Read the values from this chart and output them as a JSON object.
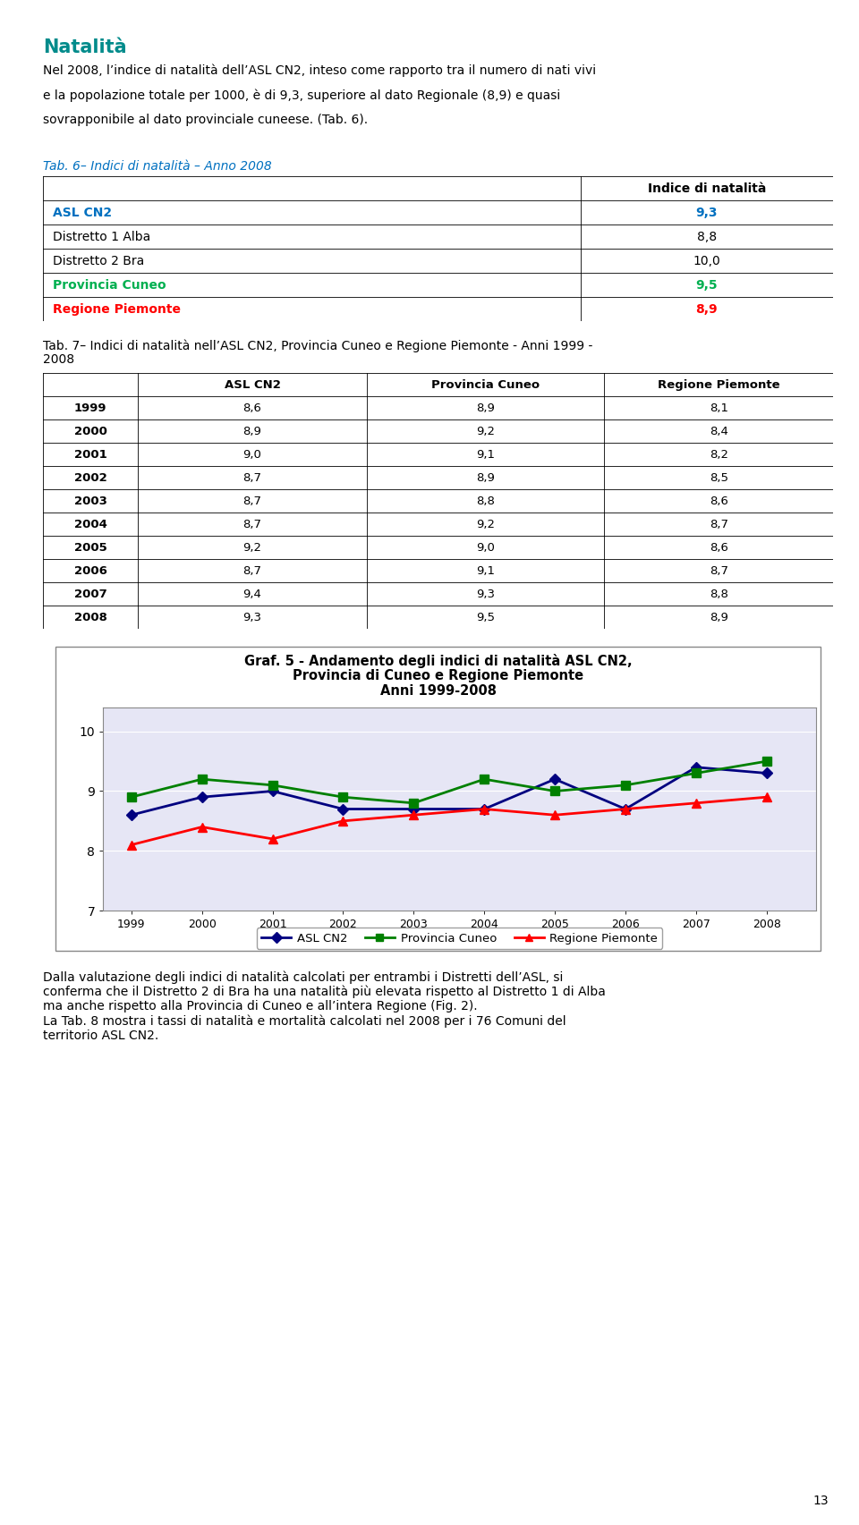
{
  "page_title": "Natalità",
  "intro_text": "Nel 2008, l’indice di natalità dell’ASL CN2, inteso come rapporto tra il numero di nati vivi\ne la popolazione totale per 1000, è di 9,3, superiore al dato Regionale (8,9) e quasi\nsovrapponibile al dato provinciale cuneese. (Tab. 6).",
  "tab6_title": "Tab. 6– Indici di natalità – Anno 2008",
  "tab6_header": "Indice di natalità",
  "tab6_rows": [
    {
      "label": "ASL CN2",
      "value": "9,3",
      "bold": true,
      "color": "#0070C0"
    },
    {
      "label": "Distretto 1 Alba",
      "value": "8,8",
      "bold": false,
      "color": "#000000"
    },
    {
      "label": "Distretto 2 Bra",
      "value": "10,0",
      "bold": false,
      "color": "#000000"
    },
    {
      "label": "Provincia Cuneo",
      "value": "9,5",
      "bold": true,
      "color": "#00B050"
    },
    {
      "label": "Regione Piemonte",
      "value": "8,9",
      "bold": true,
      "color": "#FF0000"
    }
  ],
  "tab7_title_line1": "Tab. 7– Indici di natalità nell’ASL CN2, Provincia Cuneo e Regione Piemonte - Anni 1999 -",
  "tab7_title_line2": "2008",
  "tab7_headers": [
    "",
    "ASL CN2",
    "Provincia Cuneo",
    "Regione Piemonte"
  ],
  "tab7_data": [
    [
      "1999",
      "8,6",
      "8,9",
      "8,1"
    ],
    [
      "2000",
      "8,9",
      "9,2",
      "8,4"
    ],
    [
      "2001",
      "9,0",
      "9,1",
      "8,2"
    ],
    [
      "2002",
      "8,7",
      "8,9",
      "8,5"
    ],
    [
      "2003",
      "8,7",
      "8,8",
      "8,6"
    ],
    [
      "2004",
      "8,7",
      "9,2",
      "8,7"
    ],
    [
      "2005",
      "9,2",
      "9,0",
      "8,6"
    ],
    [
      "2006",
      "8,7",
      "9,1",
      "8,7"
    ],
    [
      "2007",
      "9,4",
      "9,3",
      "8,8"
    ],
    [
      "2008",
      "9,3",
      "9,5",
      "8,9"
    ]
  ],
  "chart_title_line1": "Graf. 5 - Andamento degli indici di natalità ASL CN2,",
  "chart_title_line2": "Provincia di Cuneo e Regione Piemonte",
  "chart_title_line3": "Anni 1999-2008",
  "years": [
    1999,
    2000,
    2001,
    2002,
    2003,
    2004,
    2005,
    2006,
    2007,
    2008
  ],
  "asl_cn2": [
    8.6,
    8.9,
    9.0,
    8.7,
    8.7,
    8.7,
    9.2,
    8.7,
    9.4,
    9.3
  ],
  "provincia_cuneo": [
    8.9,
    9.2,
    9.1,
    8.9,
    8.8,
    9.2,
    9.0,
    9.1,
    9.3,
    9.5
  ],
  "regione_piemonte": [
    8.1,
    8.4,
    8.2,
    8.5,
    8.6,
    8.7,
    8.6,
    8.7,
    8.8,
    8.9
  ],
  "asl_color": "#000080",
  "provincia_color": "#008000",
  "regione_color": "#FF0000",
  "chart_bg": "#E6E6F5",
  "outro_text_line1": "Dalla valutazione degli indici di natalità calcolati per entrambi i Distretti dell’ASL, si",
  "outro_text_line2": "conferma che il Distretto 2 di Bra ha una natalità più elevata rispetto al Distretto 1 di Alba",
  "outro_text_line3": "ma anche rispetto alla Provincia di Cuneo e all’intera Regione (Fig. 2).",
  "outro_text_line4": "La Tab. 8 mostra i tassi di natalità e mortalità calcolati nel 2008 per i 76 Comuni del",
  "outro_text_line5": "territorio ASL CN2.",
  "page_number": "13",
  "title_color": "#008B8B",
  "tab_title_color": "#0070C0"
}
